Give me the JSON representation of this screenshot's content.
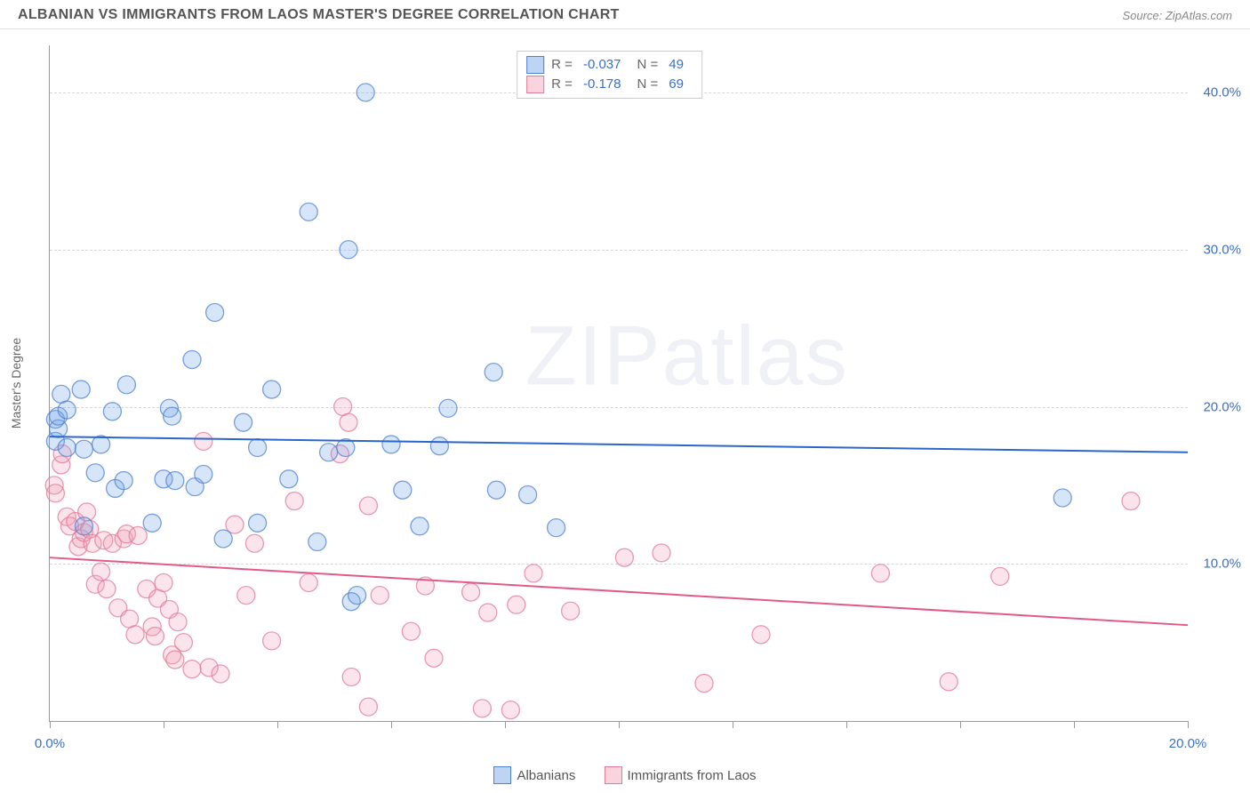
{
  "header": {
    "title": "ALBANIAN VS IMMIGRANTS FROM LAOS MASTER'S DEGREE CORRELATION CHART",
    "source": "Source: ZipAtlas.com"
  },
  "axes": {
    "y_label": "Master's Degree",
    "watermark": "ZIPatlas"
  },
  "chart": {
    "type": "scatter",
    "xlim": [
      0,
      20
    ],
    "ylim": [
      0,
      43
    ],
    "x_ticks": [
      0,
      2,
      4,
      6,
      8,
      10,
      12,
      14,
      16,
      18,
      20
    ],
    "x_tick_labels": {
      "0": "0.0%",
      "20": "20.0%"
    },
    "y_gridlines": [
      10,
      20,
      30,
      40
    ],
    "y_tick_labels": {
      "10": "10.0%",
      "20": "20.0%",
      "30": "30.0%",
      "40": "40.0%"
    },
    "background_color": "#ffffff",
    "grid_color": "#d7d7d7",
    "marker_radius": 10,
    "marker_opacity_fill": 0.28,
    "marker_opacity_stroke": 0.75,
    "line_width": 2
  },
  "series_a": {
    "name": "Albanians",
    "color_fill": "#6fa0e6",
    "color_stroke": "#4d82d0",
    "R": "-0.037",
    "N": "49",
    "regression": {
      "y_at_x0": 18.1,
      "y_at_x20": 17.1
    },
    "points": [
      [
        0.1,
        17.8
      ],
      [
        0.1,
        19.2
      ],
      [
        0.15,
        18.6
      ],
      [
        0.15,
        19.4
      ],
      [
        0.2,
        20.8
      ],
      [
        0.3,
        19.8
      ],
      [
        0.3,
        17.4
      ],
      [
        0.55,
        21.1
      ],
      [
        0.6,
        17.3
      ],
      [
        0.6,
        12.4
      ],
      [
        0.8,
        15.8
      ],
      [
        0.9,
        17.6
      ],
      [
        1.1,
        19.7
      ],
      [
        1.15,
        14.8
      ],
      [
        1.3,
        15.3
      ],
      [
        1.35,
        21.4
      ],
      [
        1.8,
        12.6
      ],
      [
        2.0,
        15.4
      ],
      [
        2.1,
        19.9
      ],
      [
        2.15,
        19.4
      ],
      [
        2.2,
        15.3
      ],
      [
        2.5,
        23.0
      ],
      [
        2.55,
        14.9
      ],
      [
        2.7,
        15.7
      ],
      [
        2.9,
        26.0
      ],
      [
        3.05,
        11.6
      ],
      [
        3.4,
        19.0
      ],
      [
        3.65,
        17.4
      ],
      [
        3.65,
        12.6
      ],
      [
        3.9,
        21.1
      ],
      [
        4.2,
        15.4
      ],
      [
        4.55,
        32.4
      ],
      [
        4.7,
        11.4
      ],
      [
        4.9,
        17.1
      ],
      [
        5.2,
        17.4
      ],
      [
        5.25,
        30.0
      ],
      [
        5.3,
        7.6
      ],
      [
        5.4,
        8.0
      ],
      [
        5.55,
        40.0
      ],
      [
        6.0,
        17.6
      ],
      [
        6.2,
        14.7
      ],
      [
        6.5,
        12.4
      ],
      [
        6.85,
        17.5
      ],
      [
        7.0,
        19.9
      ],
      [
        7.8,
        22.2
      ],
      [
        7.85,
        14.7
      ],
      [
        8.4,
        14.4
      ],
      [
        8.9,
        12.3
      ],
      [
        17.8,
        14.2
      ]
    ]
  },
  "series_b": {
    "name": "Immigrants from Laos",
    "color_fill": "#f29fb6",
    "color_stroke": "#e07b99",
    "R": "-0.178",
    "N": "69",
    "regression": {
      "y_at_x0": 10.4,
      "y_at_x20": 6.1
    },
    "points": [
      [
        0.08,
        15.0
      ],
      [
        0.1,
        14.5
      ],
      [
        0.2,
        16.3
      ],
      [
        0.22,
        17.0
      ],
      [
        0.3,
        13.0
      ],
      [
        0.35,
        12.4
      ],
      [
        0.45,
        12.7
      ],
      [
        0.5,
        11.1
      ],
      [
        0.55,
        11.6
      ],
      [
        0.6,
        12.0
      ],
      [
        0.65,
        13.3
      ],
      [
        0.7,
        12.2
      ],
      [
        0.75,
        11.3
      ],
      [
        0.8,
        8.7
      ],
      [
        0.9,
        9.5
      ],
      [
        0.95,
        11.5
      ],
      [
        1.0,
        8.4
      ],
      [
        1.1,
        11.3
      ],
      [
        1.2,
        7.2
      ],
      [
        1.3,
        11.6
      ],
      [
        1.35,
        11.9
      ],
      [
        1.4,
        6.5
      ],
      [
        1.5,
        5.5
      ],
      [
        1.55,
        11.8
      ],
      [
        1.7,
        8.4
      ],
      [
        1.8,
        6.0
      ],
      [
        1.85,
        5.4
      ],
      [
        1.9,
        7.8
      ],
      [
        2.0,
        8.8
      ],
      [
        2.1,
        7.1
      ],
      [
        2.15,
        4.2
      ],
      [
        2.2,
        3.9
      ],
      [
        2.25,
        6.3
      ],
      [
        2.35,
        5.0
      ],
      [
        2.5,
        3.3
      ],
      [
        2.7,
        17.8
      ],
      [
        2.8,
        3.4
      ],
      [
        3.0,
        3.0
      ],
      [
        3.25,
        12.5
      ],
      [
        3.45,
        8.0
      ],
      [
        3.6,
        11.3
      ],
      [
        3.9,
        5.1
      ],
      [
        4.3,
        14.0
      ],
      [
        4.55,
        8.8
      ],
      [
        5.1,
        17.0
      ],
      [
        5.15,
        20.0
      ],
      [
        5.25,
        19.0
      ],
      [
        5.3,
        2.8
      ],
      [
        5.6,
        13.7
      ],
      [
        5.6,
        0.9
      ],
      [
        5.8,
        8.0
      ],
      [
        6.35,
        5.7
      ],
      [
        6.6,
        8.6
      ],
      [
        6.75,
        4.0
      ],
      [
        7.4,
        8.2
      ],
      [
        7.6,
        0.8
      ],
      [
        7.7,
        6.9
      ],
      [
        8.1,
        0.7
      ],
      [
        8.2,
        7.4
      ],
      [
        8.5,
        9.4
      ],
      [
        9.15,
        7.0
      ],
      [
        10.1,
        10.4
      ],
      [
        10.75,
        10.7
      ],
      [
        11.5,
        2.4
      ],
      [
        12.5,
        5.5
      ],
      [
        14.6,
        9.4
      ],
      [
        15.8,
        2.5
      ],
      [
        16.7,
        9.2
      ],
      [
        19.0,
        14.0
      ]
    ]
  },
  "legend": {
    "a": "Albanians",
    "b": "Immigrants from Laos"
  }
}
